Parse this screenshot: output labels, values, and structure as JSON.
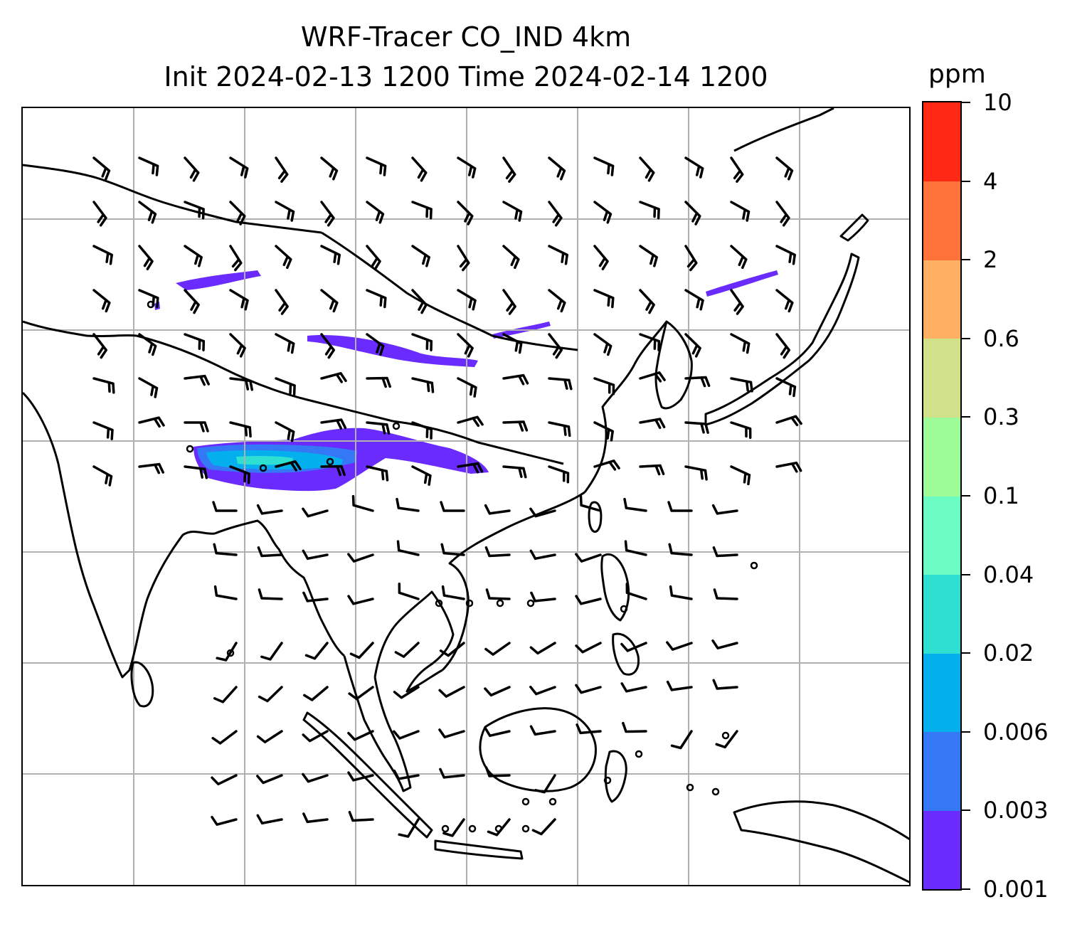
{
  "title": {
    "line1": "WRF-Tracer CO_IND 4km",
    "line2": "Init 2024-02-13 1200 Time 2024-02-14 1200"
  },
  "colorbar": {
    "unit": "ppm",
    "tick_labels": [
      "0.001",
      "0.003",
      "0.006",
      "0.02",
      "0.04",
      "0.1",
      "0.3",
      "0.6",
      "2",
      "4",
      "10"
    ],
    "colors": [
      "#6a2bff",
      "#3478f6",
      "#03b0ed",
      "#2fe0d2",
      "#6cfdc4",
      "#9dfb98",
      "#d1e189",
      "#ffb062",
      "#ff7239",
      "#ff2916"
    ]
  },
  "map": {
    "coastline_color": "#000000",
    "grid_color": "#b0b0b0",
    "barb_color": "#000000"
  }
}
